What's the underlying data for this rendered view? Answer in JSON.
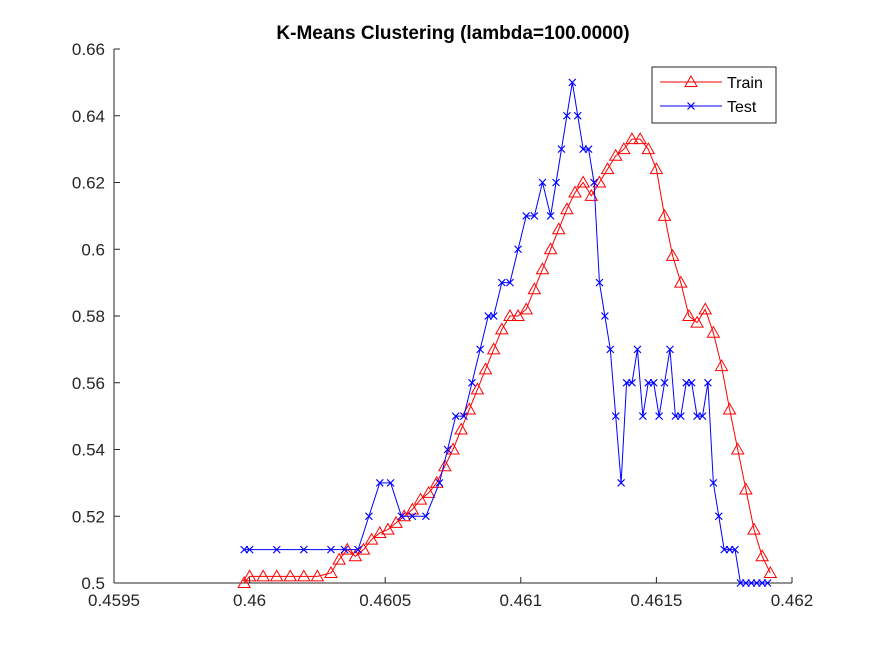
{
  "chart_data": {
    "type": "line",
    "title": "K-Means Clustering (lambda=100.0000)",
    "xlabel": "",
    "ylabel": "",
    "xlim": [
      0.4595,
      0.462
    ],
    "ylim": [
      0.5,
      0.66
    ],
    "xticks": [
      0.4595,
      0.46,
      0.4605,
      0.461,
      0.4615,
      0.462
    ],
    "xtick_labels": [
      "0.4595",
      "0.46",
      "0.4605",
      "0.461",
      "0.4615",
      "0.462"
    ],
    "yticks": [
      0.5,
      0.52,
      0.54,
      0.56,
      0.58,
      0.6,
      0.62,
      0.64,
      0.66
    ],
    "ytick_labels": [
      "0.5",
      "0.52",
      "0.54",
      "0.56",
      "0.58",
      "0.6",
      "0.62",
      "0.64",
      "0.66"
    ],
    "grid": false,
    "legend_position": "top-right",
    "series": [
      {
        "name": "Train",
        "color": "#ff0000",
        "marker": "triangle",
        "x": [
          0.45998,
          0.46,
          0.46005,
          0.4601,
          0.46015,
          0.4602,
          0.46025,
          0.4603,
          0.46033,
          0.46036,
          0.46039,
          0.46042,
          0.46045,
          0.46048,
          0.46051,
          0.46054,
          0.46057,
          0.4606,
          0.46063,
          0.46066,
          0.46069,
          0.46072,
          0.46075,
          0.46078,
          0.46081,
          0.46084,
          0.46087,
          0.4609,
          0.46093,
          0.46096,
          0.46099,
          0.46102,
          0.46105,
          0.46108,
          0.46111,
          0.46114,
          0.46117,
          0.4612,
          0.46123,
          0.46126,
          0.46129,
          0.46132,
          0.46135,
          0.46138,
          0.46141,
          0.46144,
          0.46147,
          0.4615,
          0.46153,
          0.46156,
          0.46159,
          0.46162,
          0.46165,
          0.46168,
          0.46171,
          0.46174,
          0.46177,
          0.4618,
          0.46183,
          0.46186,
          0.46189,
          0.46192
        ],
        "y": [
          0.5,
          0.502,
          0.502,
          0.502,
          0.502,
          0.502,
          0.502,
          0.503,
          0.507,
          0.51,
          0.508,
          0.51,
          0.513,
          0.515,
          0.516,
          0.518,
          0.52,
          0.522,
          0.525,
          0.527,
          0.53,
          0.535,
          0.54,
          0.546,
          0.552,
          0.558,
          0.564,
          0.57,
          0.576,
          0.58,
          0.58,
          0.582,
          0.588,
          0.594,
          0.6,
          0.606,
          0.612,
          0.617,
          0.62,
          0.616,
          0.62,
          0.624,
          0.628,
          0.63,
          0.633,
          0.633,
          0.63,
          0.624,
          0.61,
          0.598,
          0.59,
          0.58,
          0.578,
          0.582,
          0.575,
          0.565,
          0.552,
          0.54,
          0.528,
          0.516,
          0.508,
          0.503
        ]
      },
      {
        "name": "Test",
        "color": "#0000ff",
        "marker": "x",
        "x": [
          0.45998,
          0.46,
          0.4601,
          0.4602,
          0.4603,
          0.46035,
          0.4604,
          0.46044,
          0.46048,
          0.46052,
          0.46056,
          0.4606,
          0.46065,
          0.4607,
          0.46073,
          0.46076,
          0.46079,
          0.46082,
          0.46085,
          0.46088,
          0.4609,
          0.46093,
          0.46096,
          0.46099,
          0.46102,
          0.46105,
          0.46108,
          0.46111,
          0.46113,
          0.46115,
          0.46117,
          0.46119,
          0.46121,
          0.46123,
          0.46125,
          0.46127,
          0.46129,
          0.46131,
          0.46133,
          0.46135,
          0.46137,
          0.46139,
          0.46141,
          0.46143,
          0.46145,
          0.46147,
          0.46149,
          0.46151,
          0.46153,
          0.46155,
          0.46157,
          0.46159,
          0.46161,
          0.46163,
          0.46165,
          0.46167,
          0.46169,
          0.46171,
          0.46173,
          0.46175,
          0.46177,
          0.46179,
          0.46181,
          0.46183,
          0.46185,
          0.46187,
          0.46189,
          0.46191
        ],
        "y": [
          0.51,
          0.51,
          0.51,
          0.51,
          0.51,
          0.51,
          0.51,
          0.52,
          0.53,
          0.53,
          0.52,
          0.52,
          0.52,
          0.53,
          0.54,
          0.55,
          0.55,
          0.56,
          0.57,
          0.58,
          0.58,
          0.59,
          0.59,
          0.6,
          0.61,
          0.61,
          0.62,
          0.61,
          0.62,
          0.63,
          0.64,
          0.65,
          0.64,
          0.63,
          0.63,
          0.62,
          0.59,
          0.58,
          0.57,
          0.55,
          0.53,
          0.56,
          0.56,
          0.57,
          0.55,
          0.56,
          0.56,
          0.55,
          0.56,
          0.57,
          0.55,
          0.55,
          0.56,
          0.56,
          0.55,
          0.55,
          0.56,
          0.53,
          0.52,
          0.51,
          0.51,
          0.51,
          0.5,
          0.5,
          0.5,
          0.5,
          0.5,
          0.5
        ]
      }
    ]
  }
}
